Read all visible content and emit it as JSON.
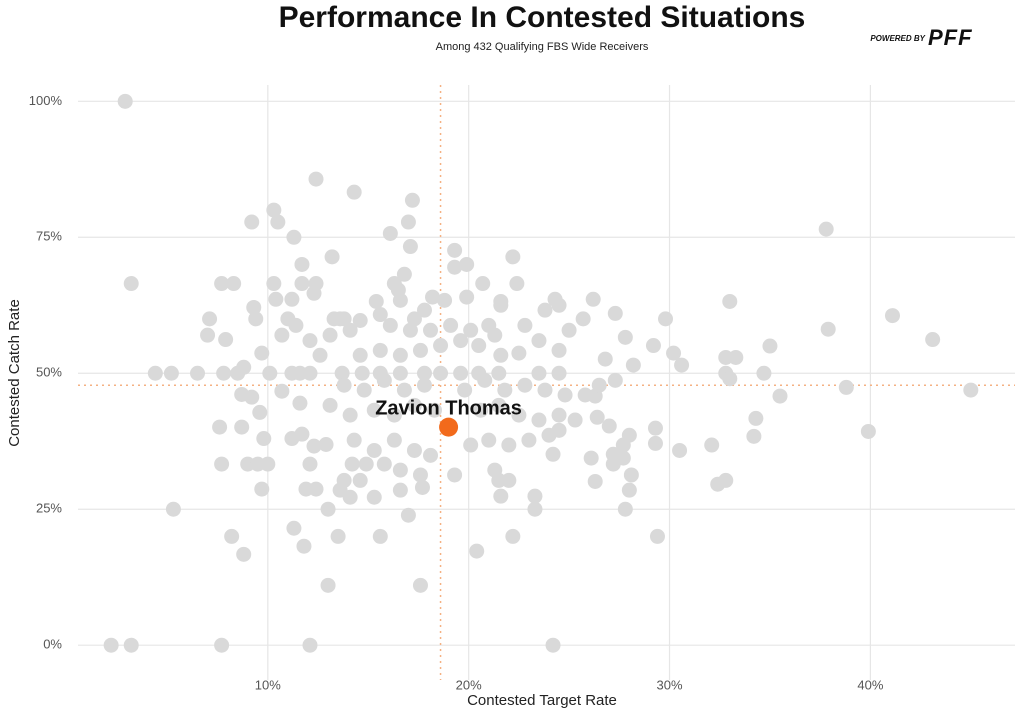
{
  "chart_data": {
    "type": "scatter",
    "title": "Performance In Contested Situations",
    "subtitle": "Among 432 Qualifying FBS Wide Receivers",
    "brand": "POWERED BY",
    "logo": "PFF",
    "x_label": "Contested Target Rate",
    "y_label": "Contested Catch Rate",
    "xlim": [
      0.55,
      47.2
    ],
    "ylim": [
      -6.4,
      103
    ],
    "xticks": [
      {
        "value": 10,
        "label": "10%"
      },
      {
        "value": 20,
        "label": "20%"
      },
      {
        "value": 30,
        "label": "30%"
      },
      {
        "value": 40,
        "label": "40%"
      }
    ],
    "yticks": [
      {
        "value": 0,
        "label": "0%"
      },
      {
        "value": 25,
        "label": "25%"
      },
      {
        "value": 50,
        "label": "50%"
      },
      {
        "value": 75,
        "label": "75%"
      },
      {
        "value": 100,
        "label": "100%"
      }
    ],
    "grid": true,
    "reference_x": 18.6,
    "reference_y": 47.8,
    "reference_color": "#f4b183",
    "series": [
      {
        "color": "#d9d9d9",
        "x": [
          2.9,
          3.2,
          2.2,
          3.2,
          7.7,
          12.1,
          24.2,
          5.3,
          4.4,
          5.2,
          6.5,
          10.3,
          10.5,
          9.2,
          12.4,
          14.3,
          17.2,
          17.0,
          37.8,
          11.3,
          16.1,
          17.1,
          19.3,
          22.2,
          13.2,
          11.7,
          19.9,
          19.3,
          16.8,
          7.7,
          8.3,
          10.3,
          12.4,
          11.7,
          16.3,
          20.7,
          22.4,
          10.4,
          11.2,
          12.3,
          15.4,
          18.2,
          19.9,
          21.6,
          24.3,
          26.2,
          33,
          9.3,
          7.1,
          9.4,
          11,
          13.6,
          13.8,
          17.3,
          25.7,
          27.3,
          29.8,
          37.9,
          41.1,
          27.8,
          43.1,
          7,
          7.9,
          9.7,
          35,
          33.3,
          32.8,
          30.2,
          30.6,
          29.2,
          32.8,
          33.0,
          34.7,
          35.5,
          38.8,
          45,
          39.9,
          34.3,
          34.2,
          32.1,
          30.5,
          32.4,
          32.8,
          29.3,
          29.3,
          29.4,
          28,
          27.7,
          28.1,
          28,
          27.8,
          26.3,
          26.4,
          26.3,
          27.3,
          26.5,
          26.8,
          28.2,
          27,
          26.1,
          27.2,
          27.2,
          27.7,
          23.3,
          23.3,
          22.2,
          20.4,
          7.6,
          8.7,
          7.7,
          9,
          9.5,
          10,
          9.7,
          8.2,
          8.8,
          11.3,
          11.8,
          13,
          17.6,
          15.6,
          13.5,
          13,
          17,
          11.9,
          12.4,
          12.1,
          14.2,
          14.9,
          15.8,
          9.8,
          11.2,
          11.7,
          12.9,
          12.3,
          9.6,
          9.2,
          8.7,
          11.6,
          10.7,
          10.1,
          11.2,
          11.6,
          12.1,
          13.7,
          14.7,
          15.6,
          16.6,
          17.8,
          18.6,
          19.6,
          20.5,
          21.5,
          23.5,
          24.5,
          14.6,
          15.6,
          16.6,
          17.6,
          18.6,
          19.6,
          20.5,
          21.6,
          22.5,
          23.5,
          24.5,
          25,
          17.1,
          16.1,
          18.1,
          19.1,
          20.1,
          21,
          21.3,
          14.1,
          13.1,
          12.1,
          12.6,
          13.8,
          14.8,
          15.8,
          16.8,
          17.8,
          19.8,
          20.8,
          21.8,
          22.8,
          23.8,
          24.8,
          15.3,
          16.3,
          17.3,
          18.3,
          20.6,
          21.5,
          22.5,
          23.5,
          24.5,
          14.1,
          13.1,
          14.3,
          15.3,
          16.3,
          17.3,
          18.1,
          20.1,
          21,
          22,
          23,
          24,
          16.6,
          17.6,
          19.3,
          21.3,
          21.5,
          22,
          13.8,
          14.6,
          13.6,
          14.1,
          15.3,
          16.6,
          17.7,
          21.6,
          24.2,
          24.5,
          25.3,
          25.8,
          24.5,
          23.8,
          22.8,
          21.6,
          18.8,
          17.8,
          16.6,
          16.5,
          15.6,
          14.6,
          13.3,
          10.7,
          11.4,
          8.8,
          8.5,
          7.8
        ],
        "values": [
          100,
          66.5,
          0,
          0,
          0,
          0,
          0,
          25,
          50,
          50,
          50,
          80,
          77.8,
          77.8,
          85.7,
          83.3,
          81.8,
          77.8,
          76.5,
          75,
          75.7,
          73.3,
          72.6,
          71.4,
          71.4,
          70,
          70,
          69.5,
          68.2,
          66.5,
          66.5,
          66.5,
          66.5,
          66.5,
          66.5,
          66.5,
          66.5,
          63.6,
          63.6,
          64.7,
          63.2,
          64,
          64,
          63.2,
          63.6,
          63.6,
          63.2,
          62.1,
          60,
          60,
          60,
          60,
          60,
          60,
          60,
          61,
          60,
          58.1,
          60.6,
          56.6,
          56.2,
          57,
          56.2,
          53.7,
          55,
          52.9,
          52.9,
          53.7,
          51.5,
          55.1,
          50,
          49,
          50,
          45.8,
          47.4,
          46.9,
          39.3,
          41.7,
          38.4,
          36.8,
          35.8,
          29.6,
          30.3,
          39.9,
          37.1,
          20,
          38.6,
          36.8,
          31.3,
          28.5,
          25,
          30.1,
          41.9,
          45.8,
          48.7,
          47.8,
          52.6,
          51.5,
          40.3,
          34.4,
          35.1,
          33.3,
          34.4,
          27.4,
          25,
          20,
          17.3,
          40.1,
          40.1,
          33.3,
          33.3,
          33.3,
          33.3,
          28.7,
          20,
          16.7,
          21.5,
          18.2,
          11,
          11,
          20,
          20,
          25,
          23.9,
          28.7,
          28.7,
          33.3,
          33.3,
          33.3,
          33.3,
          38,
          38,
          38.8,
          36.9,
          36.6,
          42.8,
          45.6,
          46.1,
          44.5,
          46.7,
          50,
          50,
          50,
          50,
          50,
          50,
          50,
          50,
          50,
          50,
          50,
          50,
          50,
          50,
          50,
          53.3,
          54.2,
          53.3,
          54.2,
          55.1,
          56,
          55.1,
          53.3,
          53.7,
          56,
          54.2,
          57.9,
          57.9,
          58.8,
          57.9,
          58.8,
          57.9,
          58.8,
          57,
          57.9,
          57,
          56,
          53.3,
          47.8,
          46.9,
          48.7,
          46.9,
          47.8,
          46.9,
          48.7,
          46.9,
          47.8,
          46.9,
          46,
          43.2,
          42.3,
          44.1,
          43.2,
          43.2,
          44.1,
          42.3,
          41.4,
          42.3,
          42.3,
          44.1,
          37.7,
          35.8,
          37.7,
          35.8,
          34.9,
          36.8,
          37.7,
          36.8,
          37.7,
          38.6,
          32.2,
          31.3,
          31.3,
          32.2,
          30.3,
          30.3,
          30.3,
          30.3,
          28.5,
          27.2,
          27.2,
          28.5,
          29,
          27.4,
          35.1,
          39.5,
          41.4,
          46,
          62.5,
          61.6,
          58.8,
          62.5,
          63.4,
          61.6,
          63.4,
          65.3,
          60.8,
          59.7,
          60,
          57,
          58.8,
          51.1,
          50,
          50
        ]
      },
      {
        "name": "Zavion Thomas",
        "color": "#f26a1b",
        "x": [
          19.0
        ],
        "values": [
          40.1
        ]
      }
    ]
  }
}
